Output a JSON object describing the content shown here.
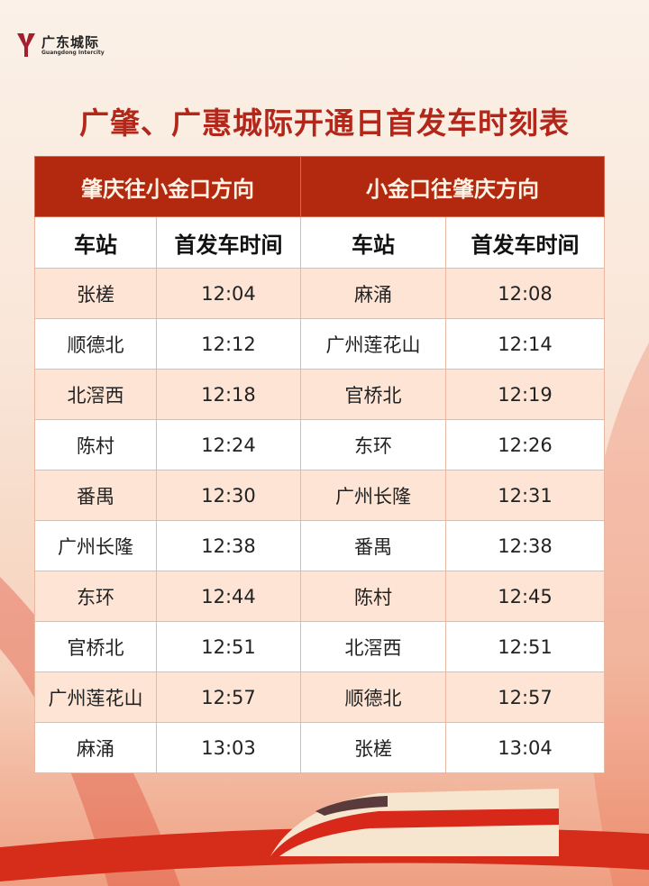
{
  "logo": {
    "cn": "广东城际",
    "en": "Guangdong Intercity"
  },
  "title": "广肇、广惠城际开通日首发车时刻表",
  "colors": {
    "accent": "#b3290f",
    "title": "#b3261a",
    "row_alt": "#fde4d4"
  },
  "table": {
    "directions": [
      "肇庆往小金口方向",
      "小金口往肇庆方向"
    ],
    "headers": [
      "车站",
      "首发车时间",
      "车站",
      "首发车时间"
    ],
    "rows": [
      [
        "张槎",
        "12:04",
        "麻涌",
        "12:08"
      ],
      [
        "顺德北",
        "12:12",
        "广州莲花山",
        "12:14"
      ],
      [
        "北滘西",
        "12:18",
        "官桥北",
        "12:19"
      ],
      [
        "陈村",
        "12:24",
        "东环",
        "12:26"
      ],
      [
        "番禺",
        "12:30",
        "广州长隆",
        "12:31"
      ],
      [
        "广州长隆",
        "12:38",
        "番禺",
        "12:38"
      ],
      [
        "东环",
        "12:44",
        "陈村",
        "12:45"
      ],
      [
        "官桥北",
        "12:51",
        "北滘西",
        "12:51"
      ],
      [
        "广州莲花山",
        "12:57",
        "顺德北",
        "12:57"
      ],
      [
        "麻涌",
        "13:03",
        "张槎",
        "13:04"
      ]
    ]
  }
}
